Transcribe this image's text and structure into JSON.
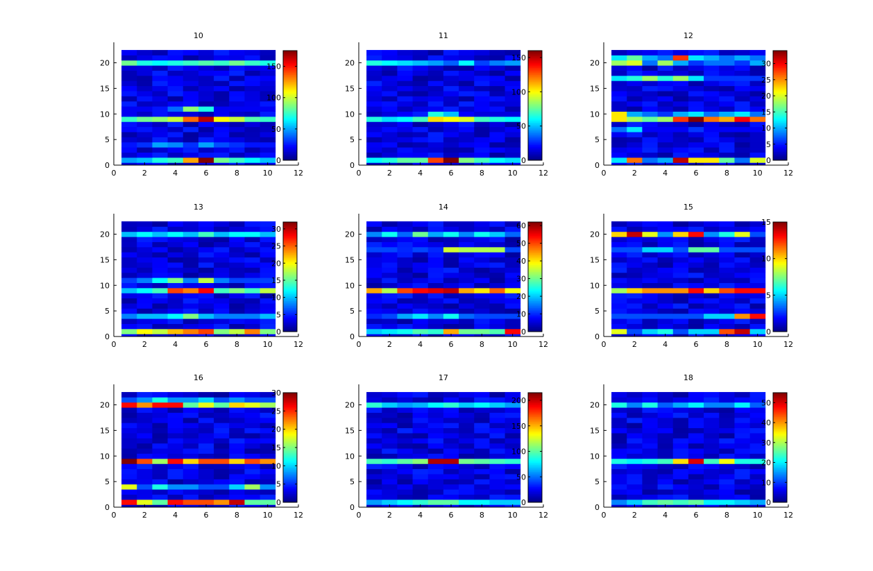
{
  "figure": {
    "layout": {
      "rows": 3,
      "cols": 3
    },
    "colormap": "jet"
  },
  "chart_data": [
    {
      "type": "heatmap",
      "title": "10",
      "x_ticks": [
        0,
        2,
        4,
        6,
        8,
        10,
        12
      ],
      "y_ticks": [
        0,
        5,
        10,
        15,
        20
      ],
      "xlim": [
        0,
        12
      ],
      "ylim": [
        0,
        24
      ],
      "x_range": [
        0.5,
        10.5
      ],
      "y_range": [
        0,
        22.5
      ],
      "colorbar": {
        "min": 0,
        "max": 175,
        "ticks": [
          0,
          50,
          100,
          150
        ],
        "labels": [
          "0",
          "50",
          "100",
          "150"
        ]
      },
      "notable_rows": [
        {
          "y": 20,
          "values": [
            85,
            70,
            65,
            70,
            75,
            80,
            75,
            85,
            75,
            70
          ]
        },
        {
          "y": 11,
          "values": [
            20,
            20,
            25,
            40,
            90,
            70,
            20,
            20,
            20,
            20
          ]
        },
        {
          "y": 9,
          "values": [
            75,
            85,
            90,
            100,
            135,
            165,
            110,
            100,
            80,
            75
          ]
        },
        {
          "y": 4,
          "values": [
            25,
            30,
            50,
            45,
            30,
            50,
            35,
            30,
            25,
            25
          ]
        },
        {
          "y": 1,
          "values": [
            50,
            55,
            70,
            75,
            125,
            175,
            85,
            75,
            65,
            55
          ]
        }
      ]
    },
    {
      "type": "heatmap",
      "title": "11",
      "x_ticks": [
        0,
        2,
        4,
        6,
        8,
        10,
        12
      ],
      "y_ticks": [
        0,
        5,
        10,
        15,
        20
      ],
      "xlim": [
        0,
        12
      ],
      "ylim": [
        0,
        24
      ],
      "x_range": [
        0.5,
        10.5
      ],
      "y_range": [
        0,
        22.5
      ],
      "colorbar": {
        "min": 0,
        "max": 160,
        "ticks": [
          0,
          50,
          100,
          150
        ],
        "labels": [
          "0",
          "50",
          "100",
          "150"
        ]
      },
      "notable_rows": [
        {
          "y": 20,
          "values": [
            65,
            60,
            55,
            50,
            45,
            35,
            60,
            30,
            40,
            45
          ]
        },
        {
          "y": 10,
          "values": [
            10,
            15,
            20,
            25,
            65,
            50,
            20,
            15,
            15,
            15
          ]
        },
        {
          "y": 9,
          "values": [
            65,
            55,
            60,
            70,
            105,
            100,
            95,
            70,
            65,
            60
          ]
        },
        {
          "y": 1,
          "values": [
            60,
            65,
            75,
            75,
            130,
            160,
            80,
            70,
            60,
            55
          ]
        }
      ]
    },
    {
      "type": "heatmap",
      "title": "12",
      "x_ticks": [
        0,
        2,
        4,
        6,
        8,
        10,
        12
      ],
      "y_ticks": [
        0,
        5,
        10,
        15,
        20
      ],
      "xlim": [
        0,
        12
      ],
      "ylim": [
        0,
        24
      ],
      "x_range": [
        0.5,
        10.5
      ],
      "y_range": [
        0,
        22.5
      ],
      "colorbar": {
        "min": 0,
        "max": 34,
        "ticks": [
          0,
          5,
          10,
          15,
          20,
          25,
          30
        ],
        "labels": [
          "0",
          "5",
          "10",
          "15",
          "20",
          "25",
          "30"
        ]
      },
      "notable_rows": [
        {
          "y": 21,
          "values": [
            12,
            16,
            10,
            8,
            28,
            12,
            10,
            8,
            10,
            8
          ]
        },
        {
          "y": 20,
          "values": [
            18,
            20,
            8,
            18,
            10,
            6,
            8,
            8,
            6,
            10
          ]
        },
        {
          "y": 17,
          "values": [
            12,
            14,
            18,
            14,
            18,
            12,
            6,
            6,
            6,
            6
          ]
        },
        {
          "y": 10,
          "values": [
            22,
            10,
            8,
            6,
            10,
            12,
            8,
            10,
            12,
            8
          ]
        },
        {
          "y": 9,
          "values": [
            22,
            18,
            16,
            18,
            28,
            34,
            26,
            24,
            30,
            26
          ]
        },
        {
          "y": 7,
          "values": [
            8,
            12,
            4,
            4,
            4,
            6,
            4,
            4,
            4,
            4
          ]
        },
        {
          "y": 1,
          "values": [
            12,
            26,
            8,
            10,
            32,
            22,
            22,
            16,
            8,
            20
          ]
        }
      ]
    },
    {
      "type": "heatmap",
      "title": "13",
      "x_ticks": [
        0,
        2,
        4,
        6,
        8,
        10,
        12
      ],
      "y_ticks": [
        0,
        5,
        10,
        15,
        20
      ],
      "xlim": [
        0,
        12
      ],
      "ylim": [
        0,
        24
      ],
      "x_range": [
        0.5,
        10.5
      ],
      "y_range": [
        0,
        22.5
      ],
      "colorbar": {
        "min": 0,
        "max": 32,
        "ticks": [
          0,
          5,
          10,
          15,
          20,
          25,
          30
        ],
        "labels": [
          "0",
          "5",
          "10",
          "15",
          "20",
          "25",
          "30"
        ]
      },
      "notable_rows": [
        {
          "y": 20,
          "values": [
            10,
            12,
            10,
            12,
            10,
            14,
            10,
            12,
            12,
            10
          ]
        },
        {
          "y": 11,
          "values": [
            6,
            8,
            12,
            16,
            8,
            18,
            8,
            6,
            6,
            6
          ]
        },
        {
          "y": 9,
          "values": [
            10,
            12,
            14,
            26,
            24,
            28,
            14,
            16,
            14,
            18
          ]
        },
        {
          "y": 4,
          "values": [
            8,
            10,
            10,
            12,
            16,
            10,
            8,
            8,
            8,
            10
          ]
        },
        {
          "y": 1,
          "values": [
            16,
            20,
            18,
            22,
            24,
            26,
            16,
            18,
            24,
            16
          ]
        }
      ]
    },
    {
      "type": "heatmap",
      "title": "14",
      "x_ticks": [
        0,
        2,
        4,
        6,
        8,
        10,
        12
      ],
      "y_ticks": [
        0,
        5,
        10,
        15,
        20
      ],
      "xlim": [
        0,
        12
      ],
      "ylim": [
        0,
        24
      ],
      "x_range": [
        0.5,
        10.5
      ],
      "y_range": [
        0,
        22.5
      ],
      "colorbar": {
        "min": 0,
        "max": 62,
        "ticks": [
          0,
          10,
          20,
          30,
          40,
          50,
          60
        ],
        "labels": [
          "0",
          "10",
          "20",
          "30",
          "40",
          "50",
          "60"
        ]
      },
      "notable_rows": [
        {
          "y": 20,
          "values": [
            16,
            24,
            14,
            30,
            18,
            24,
            16,
            24,
            20,
            14
          ]
        },
        {
          "y": 17,
          "values": [
            12,
            12,
            10,
            12,
            10,
            36,
            34,
            34,
            34,
            12
          ]
        },
        {
          "y": 9,
          "values": [
            44,
            34,
            50,
            54,
            56,
            58,
            44,
            40,
            48,
            38
          ]
        },
        {
          "y": 4,
          "values": [
            10,
            12,
            18,
            22,
            16,
            24,
            14,
            12,
            12,
            12
          ]
        },
        {
          "y": 1,
          "values": [
            20,
            22,
            24,
            28,
            26,
            44,
            30,
            30,
            28,
            54
          ]
        }
      ]
    },
    {
      "type": "heatmap",
      "title": "15",
      "x_ticks": [
        0,
        2,
        4,
        6,
        8,
        10,
        12
      ],
      "y_ticks": [
        0,
        5,
        10,
        15,
        20
      ],
      "xlim": [
        0,
        12
      ],
      "ylim": [
        0,
        24
      ],
      "x_range": [
        0.5,
        10.5
      ],
      "y_range": [
        0,
        22.5
      ],
      "colorbar": {
        "min": 0,
        "max": 15,
        "ticks": [
          0,
          5,
          10,
          15
        ],
        "labels": [
          "0",
          "5",
          "10",
          "15"
        ]
      },
      "notable_rows": [
        {
          "y": 20,
          "values": [
            10,
            14,
            9,
            4,
            10,
            13,
            4,
            6,
            9,
            3
          ]
        },
        {
          "y": 17,
          "values": [
            3,
            3,
            5,
            5,
            3,
            7,
            7,
            3,
            3,
            3
          ]
        },
        {
          "y": 9,
          "values": [
            8,
            10,
            11,
            11,
            11,
            13,
            10,
            12,
            13,
            13
          ]
        },
        {
          "y": 4,
          "values": [
            3,
            3,
            3,
            3,
            3,
            3,
            5,
            5,
            11,
            13
          ]
        },
        {
          "y": 1,
          "values": [
            9,
            3,
            5,
            6,
            3,
            5,
            5,
            12,
            14,
            5
          ]
        }
      ]
    },
    {
      "type": "heatmap",
      "title": "16",
      "x_ticks": [
        0,
        2,
        4,
        6,
        8,
        10,
        12
      ],
      "y_ticks": [
        0,
        5,
        10,
        15,
        20
      ],
      "xlim": [
        0,
        12
      ],
      "ylim": [
        0,
        24
      ],
      "x_range": [
        0.5,
        10.5
      ],
      "y_range": [
        0,
        22.5
      ],
      "colorbar": {
        "min": 0,
        "max": 30,
        "ticks": [
          0,
          5,
          10,
          15,
          20,
          25,
          30
        ],
        "labels": [
          "0",
          "5",
          "10",
          "15",
          "20",
          "25",
          "30"
        ]
      },
      "notable_rows": [
        {
          "y": 21,
          "values": [
            6,
            8,
            12,
            8,
            8,
            10,
            6,
            8,
            6,
            6
          ]
        },
        {
          "y": 20,
          "values": [
            26,
            22,
            26,
            26,
            14,
            18,
            14,
            20,
            18,
            16
          ]
        },
        {
          "y": 9,
          "values": [
            30,
            24,
            16,
            26,
            20,
            24,
            24,
            20,
            24,
            22
          ]
        },
        {
          "y": 4,
          "values": [
            18,
            6,
            12,
            8,
            8,
            6,
            6,
            10,
            16,
            8
          ]
        },
        {
          "y": 1,
          "values": [
            26,
            18,
            14,
            26,
            24,
            24,
            22,
            28,
            14,
            14
          ]
        }
      ]
    },
    {
      "type": "heatmap",
      "title": "17",
      "x_ticks": [
        0,
        2,
        4,
        6,
        8,
        10,
        12
      ],
      "y_ticks": [
        0,
        5,
        10,
        15,
        20
      ],
      "xlim": [
        0,
        12
      ],
      "ylim": [
        0,
        24
      ],
      "x_range": [
        0.5,
        10.5
      ],
      "y_range": [
        0,
        22.5
      ],
      "colorbar": {
        "min": 0,
        "max": 215,
        "ticks": [
          0,
          50,
          100,
          150,
          200
        ],
        "labels": [
          "0",
          "50",
          "100",
          "150",
          "200"
        ]
      },
      "notable_rows": [
        {
          "y": 20,
          "values": [
            90,
            70,
            60,
            65,
            80,
            90,
            70,
            80,
            70,
            60
          ]
        },
        {
          "y": 9,
          "values": [
            95,
            90,
            100,
            110,
            205,
            205,
            105,
            100,
            95,
            90
          ]
        },
        {
          "y": 1,
          "values": [
            60,
            70,
            80,
            90,
            100,
            100,
            80,
            80,
            70,
            70
          ]
        }
      ]
    },
    {
      "type": "heatmap",
      "title": "18",
      "x_ticks": [
        0,
        2,
        4,
        6,
        8,
        10,
        12
      ],
      "y_ticks": [
        0,
        5,
        10,
        15,
        20
      ],
      "xlim": [
        0,
        12
      ],
      "ylim": [
        0,
        24
      ],
      "x_range": [
        0.5,
        10.5
      ],
      "y_range": [
        0,
        22.5
      ],
      "colorbar": {
        "min": 0,
        "max": 55,
        "ticks": [
          0,
          10,
          20,
          30,
          40,
          50
        ],
        "labels": [
          "0",
          "10",
          "20",
          "30",
          "40",
          "50"
        ]
      },
      "notable_rows": [
        {
          "y": 20,
          "values": [
            22,
            14,
            22,
            12,
            16,
            20,
            14,
            14,
            20,
            12
          ]
        },
        {
          "y": 9,
          "values": [
            22,
            20,
            22,
            24,
            36,
            50,
            24,
            34,
            22,
            22
          ]
        },
        {
          "y": 1,
          "values": [
            14,
            18,
            24,
            26,
            24,
            26,
            20,
            20,
            18,
            16
          ]
        }
      ]
    }
  ]
}
